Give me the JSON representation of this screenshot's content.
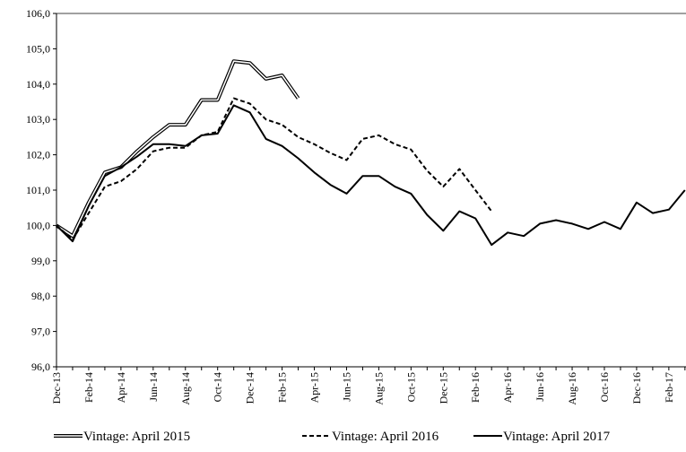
{
  "chart_data": {
    "type": "line",
    "categories": [
      "Dec-13",
      null,
      "Feb-14",
      null,
      "Apr-14",
      null,
      "Jun-14",
      null,
      "Aug-14",
      null,
      "Oct-14",
      null,
      "Dec-14",
      null,
      "Feb-15",
      null,
      "Apr-15",
      null,
      "Jun-15",
      null,
      "Aug-15",
      null,
      "Oct-15",
      null,
      "Dec-15",
      null,
      "Feb-16",
      null,
      "Apr-16",
      null,
      "Jun-16",
      null,
      "Aug-16",
      null,
      "Oct-16",
      null,
      "Dec-16",
      null,
      "Feb-17",
      null
    ],
    "series": [
      {
        "name": "Vintage: April 2015",
        "color": "#000000",
        "style": "double",
        "values": [
          100.0,
          99.7,
          100.65,
          101.5,
          101.65,
          102.1,
          102.5,
          102.85,
          102.85,
          103.55,
          103.55,
          104.65,
          104.6,
          104.15,
          104.25,
          103.6,
          null,
          null,
          null,
          null,
          null,
          null,
          null,
          null,
          null,
          null,
          null,
          null,
          null,
          null,
          null,
          null,
          null,
          null,
          null,
          null,
          null,
          null,
          null,
          null
        ]
      },
      {
        "name": "Vintage: April 2016",
        "color": "#000000",
        "style": "dashed",
        "values": [
          100.0,
          99.6,
          100.35,
          101.1,
          101.25,
          101.6,
          102.1,
          102.2,
          102.2,
          102.55,
          102.65,
          103.6,
          103.45,
          103.0,
          102.85,
          102.5,
          102.3,
          102.05,
          101.85,
          102.45,
          102.55,
          102.3,
          102.15,
          101.55,
          101.1,
          101.6,
          101.0,
          100.4,
          null,
          null,
          null,
          null,
          null,
          null,
          null,
          null,
          null,
          null,
          null,
          null
        ]
      },
      {
        "name": "Vintage: April 2017",
        "color": "#000000",
        "style": "solid",
        "values": [
          100.0,
          99.55,
          100.55,
          101.4,
          101.65,
          101.95,
          102.3,
          102.3,
          102.25,
          102.55,
          102.6,
          103.4,
          103.2,
          102.45,
          102.25,
          101.9,
          101.5,
          101.15,
          100.9,
          101.4,
          101.4,
          101.1,
          100.9,
          100.3,
          99.85,
          100.4,
          100.2,
          99.45,
          99.8,
          99.7,
          100.05,
          100.15,
          100.05,
          99.9,
          100.1,
          99.9,
          100.65,
          100.35,
          100.45,
          101.0
        ]
      }
    ],
    "ylim": [
      96,
      106
    ],
    "yticks": [
      {
        "value": 96,
        "label": "96,0"
      },
      {
        "value": 97,
        "label": "97,0"
      },
      {
        "value": 98,
        "label": "98,0"
      },
      {
        "value": 99,
        "label": "99,0"
      },
      {
        "value": 100,
        "label": "100,0"
      },
      {
        "value": 101,
        "label": "101,0"
      },
      {
        "value": 102,
        "label": "102,0"
      },
      {
        "value": 103,
        "label": "103,0"
      },
      {
        "value": 104,
        "label": "104,0"
      },
      {
        "value": 105,
        "label": "105,0"
      },
      {
        "value": 106,
        "label": "106,0"
      }
    ],
    "grid": false,
    "legend": "bottom"
  }
}
